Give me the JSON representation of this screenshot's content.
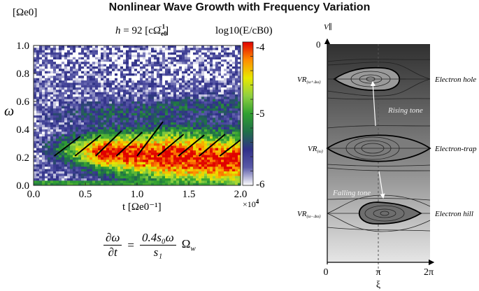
{
  "title": "Nonlinear Wave Growth with Frequency Variation",
  "chart_data": {
    "type": "heatmap",
    "title": "h = 92 [cΩe0⁻¹]",
    "title_parts": {
      "var": "h",
      "eq": " = 92 [cΩ",
      "sub": "e0",
      "sup": "−1",
      "end": "]"
    },
    "xlabel": "t [Ωe0⁻¹]",
    "xlabel_parts": {
      "main": "t  [Ω",
      "sub": "e0",
      "sup": "−1",
      "end": "]"
    },
    "x_multiplier": "×10⁴",
    "x_multiplier_parts": {
      "base": "×10",
      "exp": "4"
    },
    "ylabel": "ω",
    "yunit": "[Ωe0]",
    "yunit_parts": {
      "main": "[Ω",
      "sub": "e0",
      "end": "]"
    },
    "xlim": [
      0,
      2.0
    ],
    "ylim": [
      0,
      1.0
    ],
    "xticks": [
      "0.0",
      "0.5",
      "1.0",
      "1.5",
      "2.0"
    ],
    "yticks": [
      "0.0",
      "0.2",
      "0.4",
      "0.6",
      "0.8",
      "1.0"
    ],
    "colorbar": {
      "label": "log10(E/cB0)",
      "label_parts": {
        "main": "log",
        "sub": "10",
        "rest": "(E/cB",
        "sub2": "0",
        "end": ")"
      },
      "range": [
        -6,
        -4
      ],
      "ticks": [
        "-4",
        "-5",
        "-6"
      ],
      "colormap": [
        "#ffffff",
        "#5a5aa8",
        "#303088",
        "#207048",
        "#30a030",
        "#90d040",
        "#e8e800",
        "#ff8c00",
        "#e00000"
      ]
    },
    "overlay_lines": [
      {
        "t": [
          0.2,
          0.45
        ],
        "omega": [
          0.21,
          0.35
        ]
      },
      {
        "t": [
          0.4,
          0.65
        ],
        "omega": [
          0.21,
          0.36
        ]
      },
      {
        "t": [
          0.6,
          0.85
        ],
        "omega": [
          0.21,
          0.39
        ]
      },
      {
        "t": [
          0.8,
          1.05
        ],
        "omega": [
          0.21,
          0.38
        ]
      },
      {
        "t": [
          1.0,
          1.25
        ],
        "omega": [
          0.21,
          0.455
        ]
      },
      {
        "t": [
          1.2,
          1.45
        ],
        "omega": [
          0.21,
          0.365
        ]
      },
      {
        "t": [
          1.4,
          1.65
        ],
        "omega": [
          0.21,
          0.36
        ]
      },
      {
        "t": [
          1.6,
          1.85
        ],
        "omega": [
          0.21,
          0.365
        ]
      },
      {
        "t": [
          1.8,
          2.0
        ],
        "omega": [
          0.21,
          0.325
        ]
      }
    ]
  },
  "equation": {
    "lhs_num": "∂ω",
    "lhs_den": "∂t",
    "equals": "=",
    "rhs_num": "0.4s₀ω",
    "rhs_den": "s₁",
    "factor": "Ω",
    "factor_sub": "w"
  },
  "phase_diagram": {
    "y_axis_label": "V∥",
    "y_zero": "0",
    "x_axis_label": "ξ",
    "x_ticks": [
      "0",
      "π",
      "2π"
    ],
    "levels": [
      {
        "label": "VR",
        "sub": "(ω+Δω)",
        "name": "Electron hole"
      },
      {
        "label": "VR",
        "sub": "(ω)",
        "name": "Electron-trap"
      },
      {
        "label": "VR",
        "sub": "(ω−Δω)",
        "name": "Electron hill"
      }
    ],
    "rising_label": "Rising tone",
    "falling_label": "Falling tone"
  }
}
